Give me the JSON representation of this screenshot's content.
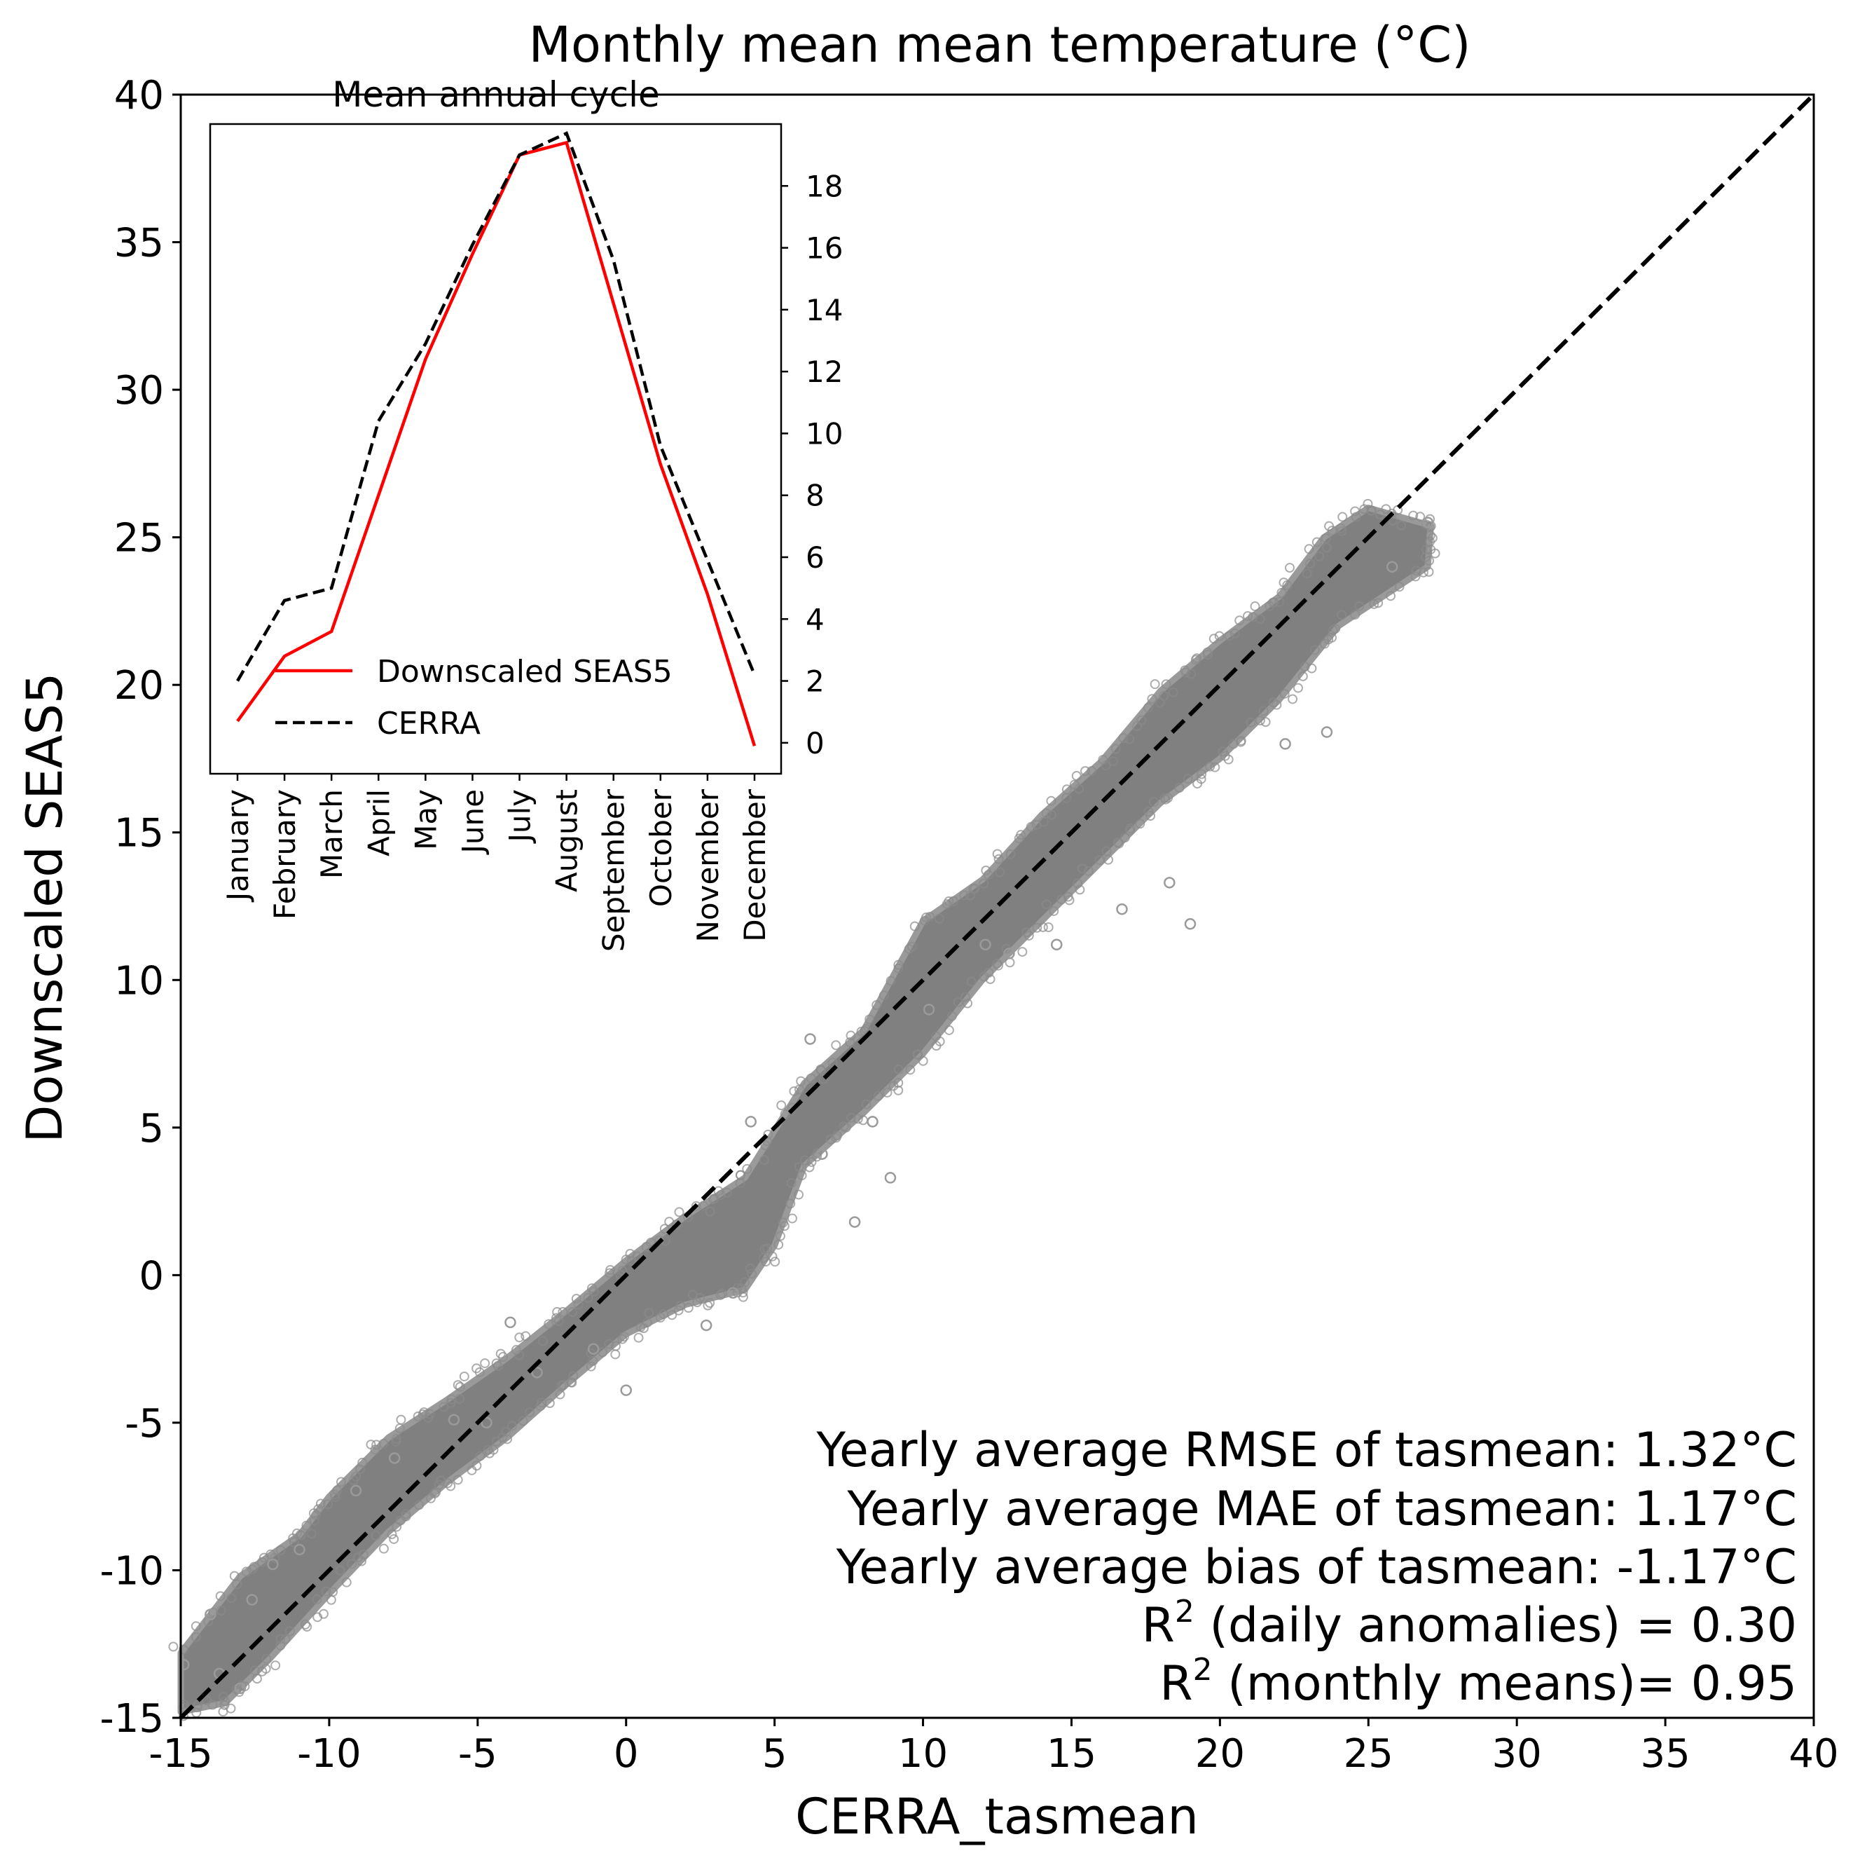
{
  "chart_data": [
    {
      "type": "scatter",
      "title": "Monthly mean mean temperature (°C)",
      "xlabel": "CERRA_tasmean",
      "ylabel": "Downscaled SEAS5",
      "xlim": [
        -15,
        40
      ],
      "ylim": [
        -15,
        40
      ],
      "xticks": [
        "-15",
        "-10",
        "-5",
        "0",
        "5",
        "10",
        "15",
        "20",
        "25",
        "30",
        "35",
        "40"
      ],
      "yticks": [
        "-15",
        "-10",
        "-5",
        "0",
        "5",
        "10",
        "15",
        "20",
        "25",
        "30",
        "35",
        "40"
      ],
      "grid": false,
      "marker": "hollow circle",
      "marker_color": "#808080",
      "reference_line": {
        "style": "dashed",
        "color": "#000000",
        "from": [
          -15,
          -15
        ],
        "to": [
          40,
          40
        ]
      },
      "point_cloud_outline": [
        [
          -15,
          -12.8
        ],
        [
          -13,
          -10.2
        ],
        [
          -11,
          -8.8
        ],
        [
          -10,
          -7.5
        ],
        [
          -8,
          -5.5
        ],
        [
          -6,
          -4.2
        ],
        [
          -4,
          -2.8
        ],
        [
          -2,
          -1.2
        ],
        [
          0,
          0.5
        ],
        [
          2,
          2.0
        ],
        [
          4,
          3.3
        ],
        [
          6,
          6.5
        ],
        [
          8,
          8.3
        ],
        [
          10,
          12.0
        ],
        [
          12,
          13.4
        ],
        [
          14,
          15.6
        ],
        [
          16,
          17.4
        ],
        [
          18,
          19.8
        ],
        [
          20,
          21.5
        ],
        [
          22,
          23.0
        ],
        [
          23.5,
          25.0
        ],
        [
          25,
          26.0
        ],
        [
          27.1,
          25.4
        ],
        [
          27,
          24.0
        ],
        [
          24,
          22.0
        ],
        [
          22,
          19.5
        ],
        [
          20,
          17.5
        ],
        [
          18,
          16.0
        ],
        [
          16,
          14.0
        ],
        [
          14,
          12.0
        ],
        [
          12,
          10.0
        ],
        [
          10,
          7.5
        ],
        [
          8,
          5.5
        ],
        [
          6,
          3.7
        ],
        [
          5,
          1.0
        ],
        [
          4,
          -0.5
        ],
        [
          2,
          -1.0
        ],
        [
          0,
          -2.0
        ],
        [
          -2,
          -3.7
        ],
        [
          -4,
          -5.5
        ],
        [
          -6,
          -7.0
        ],
        [
          -8,
          -8.7
        ],
        [
          -10,
          -10.8
        ],
        [
          -12,
          -13.0
        ],
        [
          -13.5,
          -14.5
        ],
        [
          -15,
          -14.8
        ]
      ],
      "outlier_points": [
        [
          -14.9,
          -13.2
        ],
        [
          -14.0,
          -11.5
        ],
        [
          -13.7,
          -13.5
        ],
        [
          -13.0,
          -14.0
        ],
        [
          -12.6,
          -11.0
        ],
        [
          -11.9,
          -9.8
        ],
        [
          -11.0,
          -9.3
        ],
        [
          -9.1,
          -7.3
        ],
        [
          -7.8,
          -6.2
        ],
        [
          -5.8,
          -4.9
        ],
        [
          -4.7,
          -5.0
        ],
        [
          -3.9,
          -1.6
        ],
        [
          -3.0,
          -3.3
        ],
        [
          -1.1,
          -2.5
        ],
        [
          0.0,
          -3.9
        ],
        [
          2.7,
          -1.7
        ],
        [
          3.6,
          -0.6
        ],
        [
          4.2,
          5.2
        ],
        [
          6.2,
          8.0
        ],
        [
          6.6,
          4.1
        ],
        [
          7.7,
          1.8
        ],
        [
          8.3,
          5.2
        ],
        [
          8.9,
          3.3
        ],
        [
          10.2,
          9.0
        ],
        [
          12.1,
          11.2
        ],
        [
          12.9,
          10.9
        ],
        [
          14.5,
          11.2
        ],
        [
          16.7,
          12.4
        ],
        [
          18.3,
          13.3
        ],
        [
          19.0,
          11.9
        ],
        [
          22.2,
          18.0
        ],
        [
          23.6,
          18.4
        ],
        [
          25.8,
          24.0
        ],
        [
          27.0,
          25.5
        ]
      ],
      "annotations": [
        "Yearly average RMSE of tasmean: 1.32°C",
        "Yearly average MAE of tasmean: 1.17°C",
        "Yearly average bias of tasmean: -1.17°C",
        {
          "base": "R",
          "sup": "2",
          "rest": " (daily anomalies) = 0.30"
        },
        {
          "base": "R",
          "sup": "2",
          "rest": " (monthly means)= 0.95"
        }
      ]
    },
    {
      "type": "line",
      "title": "Mean annual cycle",
      "categories": [
        "January",
        "February",
        "March",
        "April",
        "May",
        "June",
        "July",
        "August",
        "September",
        "October",
        "November",
        "December"
      ],
      "ylim": [
        -1,
        20
      ],
      "yticks": [
        "0",
        "2",
        "4",
        "6",
        "8",
        "10",
        "12",
        "14",
        "16",
        "18"
      ],
      "yaxis_side": "right",
      "legend_position": "lower-left",
      "series": [
        {
          "name": "Downscaled SEAS5",
          "color": "#ff0000",
          "style": "solid",
          "values": [
            0.7,
            2.8,
            3.6,
            8.0,
            12.4,
            15.8,
            19.0,
            19.4,
            14.2,
            9.0,
            4.8,
            -0.1
          ]
        },
        {
          "name": "CERRA",
          "color": "#000000",
          "style": "dashed",
          "values": [
            2.0,
            4.6,
            5.0,
            10.4,
            12.9,
            16.1,
            19.0,
            19.7,
            15.6,
            9.6,
            5.9,
            2.2
          ]
        }
      ]
    }
  ]
}
